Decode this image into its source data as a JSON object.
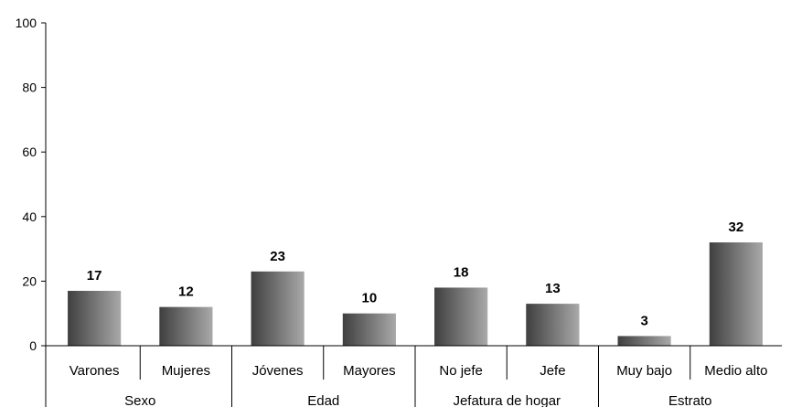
{
  "chart_data": {
    "type": "bar",
    "categories": [
      "Varones",
      "Mujeres",
      "Jóvenes",
      "Mayores",
      "No jefe",
      "Jefe",
      "Muy bajo",
      "Medio alto"
    ],
    "values": [
      17,
      12,
      23,
      10,
      18,
      13,
      3,
      32
    ],
    "groups": [
      {
        "label": "Sexo",
        "span": 2
      },
      {
        "label": "Edad",
        "span": 2
      },
      {
        "label": "Jefatura de hogar",
        "span": 2
      },
      {
        "label": "Estrato",
        "span": 2
      }
    ],
    "ylim": [
      0,
      100
    ],
    "yticks": [
      0,
      20,
      40,
      60,
      80,
      100
    ],
    "grid": false,
    "bar_gradient": [
      "#3f3f3f",
      "#a9a9a9"
    ]
  }
}
